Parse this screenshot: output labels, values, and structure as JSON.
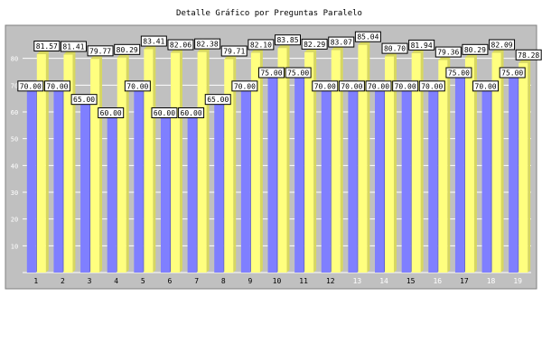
{
  "chart_data": {
    "type": "bar",
    "title": "Detalle Gráfico por Preguntas Paralelo",
    "xlabel": "",
    "ylabel": "",
    "ylim": [
      0,
      90
    ],
    "yticks": [
      10,
      20,
      30,
      40,
      50,
      60,
      70,
      80
    ],
    "grid": true,
    "categories": [
      "1",
      "2",
      "3",
      "4",
      "5",
      "6",
      "7",
      "8",
      "9",
      "10",
      "11",
      "12",
      "13",
      "14",
      "15",
      "16",
      "17",
      "18",
      "19"
    ],
    "category_label_colors": [
      "#000000",
      "#000000",
      "#000000",
      "#000000",
      "#000000",
      "#000000",
      "#000000",
      "#000000",
      "#000000",
      "#000000",
      "#000000",
      "#000000",
      "#ffffff",
      "#ffffff",
      "#000000",
      "#ffffff",
      "#000000",
      "#ffffff",
      "#ffffff"
    ],
    "series": [
      {
        "color": "#7f7fff",
        "values": [
          70.0,
          70.0,
          65.0,
          60.0,
          70.0,
          60.0,
          60.0,
          65.0,
          70.0,
          75.0,
          75.0,
          70.0,
          70.0,
          70.0,
          70.0,
          70.0,
          75.0,
          70.0,
          75.0
        ],
        "labels": [
          "70.00",
          "70.00",
          "65.00",
          "60.00",
          "70.00",
          "60.00",
          "60.00",
          "65.00",
          "70.00",
          "75.00",
          "75.00",
          "70.00",
          "70.00",
          "70.00",
          "70.00",
          "70.00",
          "75.00",
          "70.00",
          "75.00"
        ]
      },
      {
        "color": "#ffff7f",
        "values": [
          81.57,
          81.41,
          79.77,
          80.29,
          83.41,
          82.06,
          82.38,
          79.71,
          82.1,
          83.85,
          82.29,
          83.07,
          85.04,
          80.7,
          81.94,
          79.36,
          80.29,
          82.09,
          78.28
        ],
        "labels": [
          "81.57",
          "81.41",
          "79.77",
          "80.29",
          "83.41",
          "82.06",
          "82.38",
          "79.71",
          "82.10",
          "83.85",
          "82.29",
          "83.07",
          "85.04",
          "80.70",
          "81.94",
          "79.36",
          "80.29",
          "82.09",
          "78.28"
        ]
      }
    ],
    "colors": {
      "plot_background": "#c0c0c0",
      "grid": "#ffffff",
      "series1_fill": "#7f7fff",
      "series1_shade": "#5f5fcf",
      "series2_fill": "#ffff7f",
      "series2_shade": "#d7d75f",
      "label_box": "#ffffff"
    }
  }
}
